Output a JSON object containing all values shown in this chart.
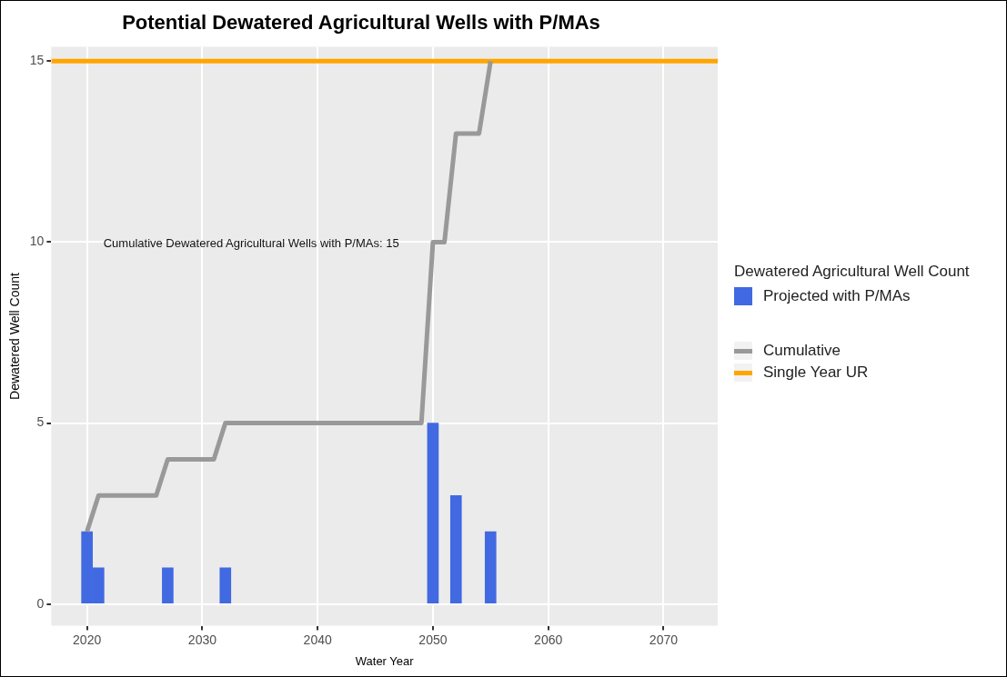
{
  "chart_data": {
    "type": "bar",
    "title": "Potential Dewatered Agricultural Wells with P/MAs",
    "xlabel": "Water Year",
    "ylabel": "Dewatered Well Count",
    "legend_title": "Dewatered Agricultural Well Count",
    "legend": "right",
    "grid": true,
    "marker": "none",
    "line_style": "solid",
    "xlim": [
      2016.9,
      2074.7
    ],
    "xticks": [
      2020,
      2030,
      2040,
      2050,
      2060,
      2070
    ],
    "ylim": [
      -0.6,
      15.4
    ],
    "yticks": [
      0,
      5,
      10,
      15
    ],
    "series": [
      {
        "name": "Projected with P/MAs",
        "color": "#4169e1",
        "x": [
          2020,
          2021,
          2027,
          2032,
          2050,
          2052,
          2055
        ],
        "values": [
          2,
          1,
          1,
          1,
          5,
          3,
          2
        ]
      },
      {
        "name": "Cumulative",
        "type": "line",
        "color": "#999999",
        "x": [
          2020,
          2021,
          2026,
          2027,
          2031,
          2032,
          2049,
          2050,
          2051,
          2052,
          2054,
          2055
        ],
        "values": [
          2,
          3,
          3,
          4,
          4,
          5,
          5,
          10,
          10,
          13,
          13,
          15
        ]
      },
      {
        "name": "Single Year UR",
        "type": "line",
        "color": "#ffa500",
        "x": [
          2016.9,
          2074.7
        ],
        "values": [
          15,
          15
        ]
      }
    ],
    "annotations": [
      "Cumulative Dewatered Agricultural Wells with P/MAs: 15"
    ]
  }
}
